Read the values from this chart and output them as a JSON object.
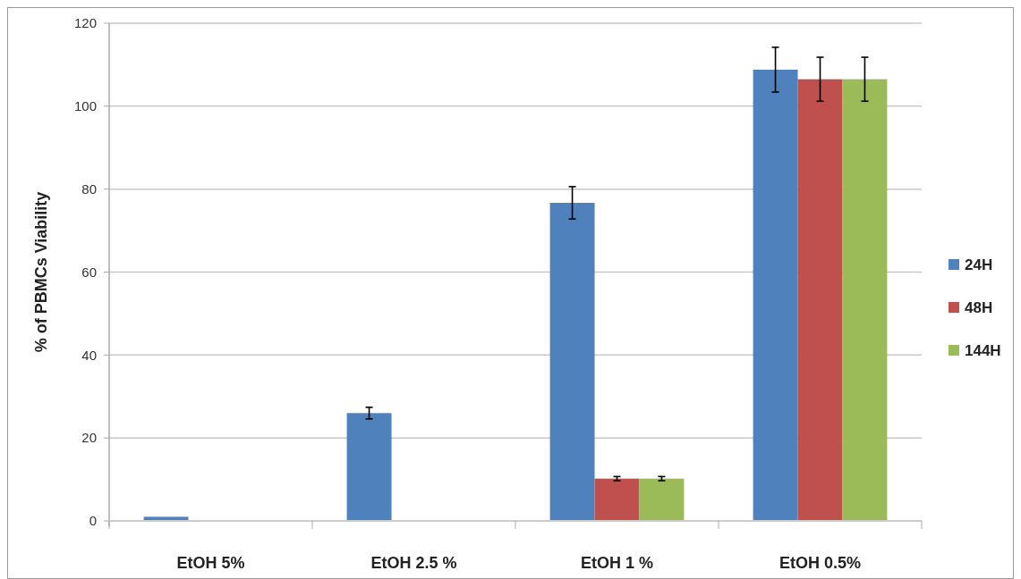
{
  "chart_data": {
    "type": "bar",
    "ylabel": "% of PBMCs Viability",
    "categories": [
      "EtOH 5%",
      "EtOH 2.5 %",
      "EtOH 1 %",
      "EtOH 0.5%"
    ],
    "series": [
      {
        "name": "24H",
        "color": "#4f81bd",
        "values": [
          1,
          26,
          76.7,
          108.8
        ],
        "errors": [
          null,
          1.4,
          3.9,
          5.4
        ]
      },
      {
        "name": "48H",
        "color": "#c0504d",
        "values": [
          null,
          null,
          10.2,
          106.5
        ],
        "errors": [
          null,
          null,
          0.5,
          5.3
        ]
      },
      {
        "name": "144H",
        "color": "#9bbb59",
        "values": [
          null,
          null,
          10.2,
          106.5
        ],
        "errors": [
          null,
          null,
          0.5,
          5.3
        ]
      }
    ],
    "ylim": [
      0,
      120
    ],
    "yticks": [
      0,
      20,
      40,
      60,
      80,
      100,
      120
    ],
    "grid": "y",
    "legend": "right"
  }
}
